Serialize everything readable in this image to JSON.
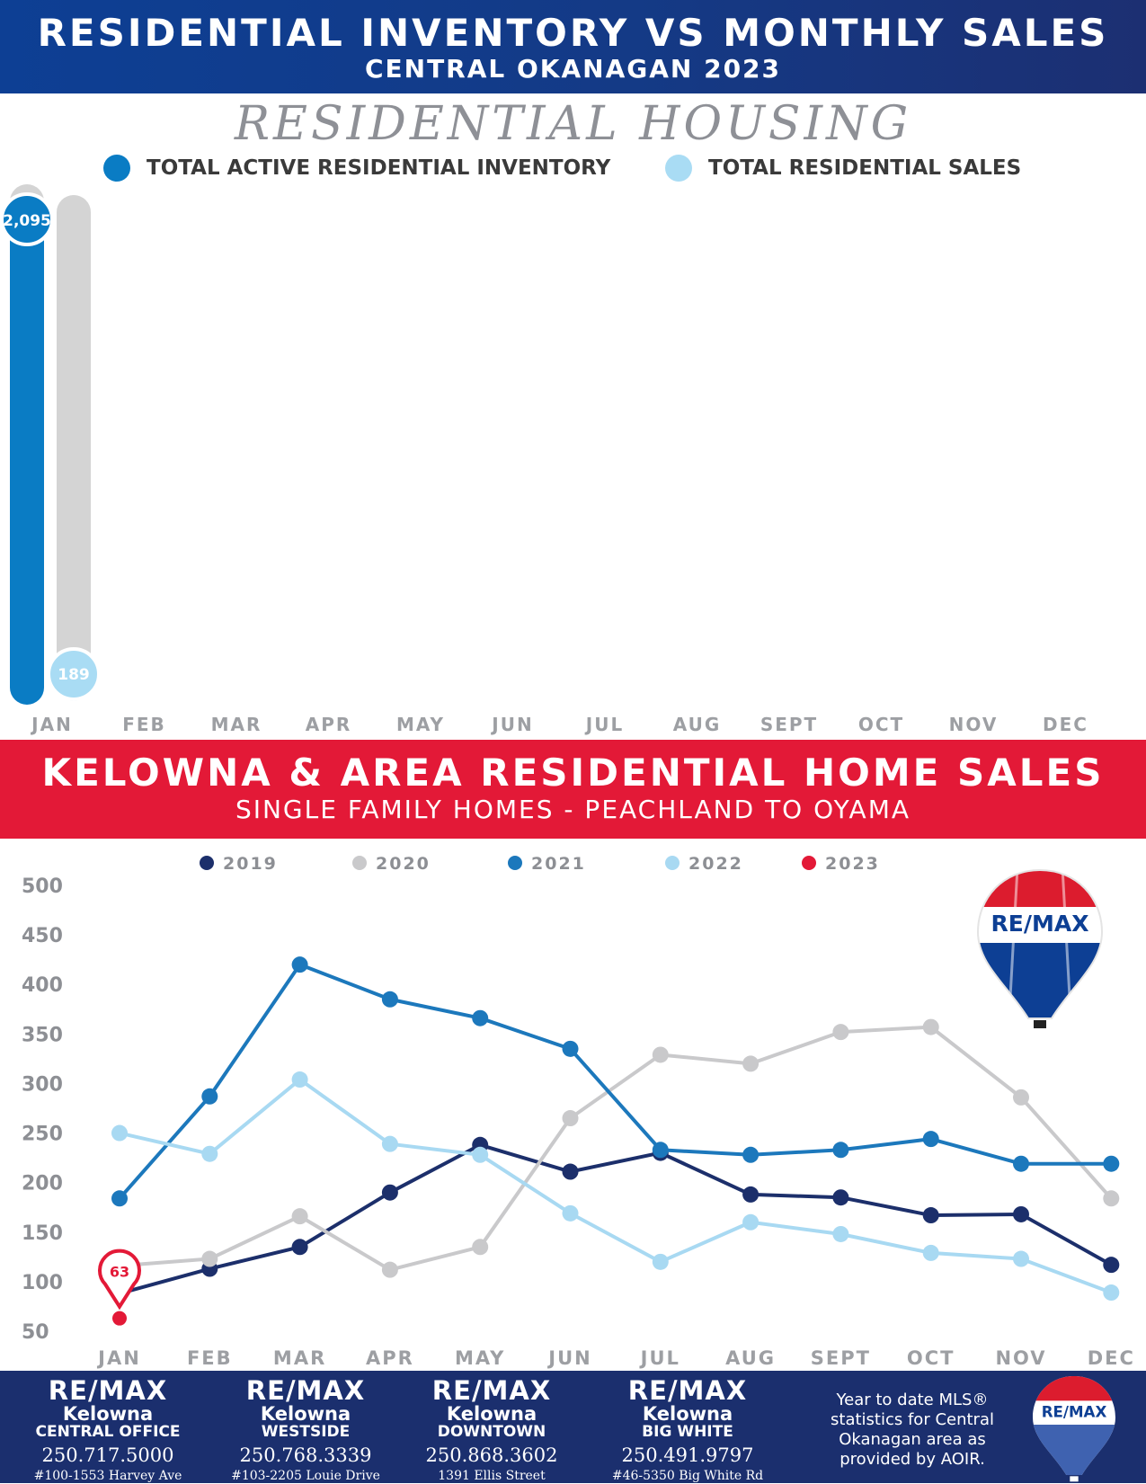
{
  "header": {
    "title": "RESIDENTIAL INVENTORY VS MONTHLY SALES",
    "subtitle": "CENTRAL OKANAGAN 2023"
  },
  "section1": {
    "script_title": "RESIDENTIAL HOUSING",
    "legend": [
      {
        "label": "TOTAL ACTIVE RESIDENTIAL INVENTORY",
        "color": "#0a7cc4"
      },
      {
        "label": "TOTAL RESIDENTIAL SALES",
        "color": "#a9dcf4"
      }
    ]
  },
  "section2": {
    "title": "KELOWNA & AREA RESIDENTIAL HOME SALES",
    "subtitle": "SINGLE FAMILY HOMES - PEACHLAND TO OYAMA"
  },
  "logo": {
    "text": "RE/MAX"
  },
  "chart_data": [
    {
      "type": "bar",
      "categories": [
        "JAN",
        "FEB",
        "MAR",
        "APR",
        "MAY",
        "JUN",
        "JUL",
        "AUG",
        "SEPT",
        "OCT",
        "NOV",
        "DEC"
      ],
      "series": [
        {
          "name": "TOTAL ACTIVE RESIDENTIAL INVENTORY",
          "values": [
            2095,
            null,
            null,
            null,
            null,
            null,
            null,
            null,
            null,
            null,
            null,
            null
          ],
          "labels": [
            "2,095"
          ],
          "color": "#0a7cc4"
        },
        {
          "name": "TOTAL RESIDENTIAL SALES",
          "values": [
            189,
            null,
            null,
            null,
            null,
            null,
            null,
            null,
            null,
            null,
            null,
            null
          ],
          "labels": [
            "189"
          ],
          "color": "#a9dcf4"
        }
      ],
      "track_color": "#d4d4d4"
    },
    {
      "type": "line",
      "categories": [
        "JAN",
        "FEB",
        "MAR",
        "APR",
        "MAY",
        "JUN",
        "JUL",
        "AUG",
        "SEPT",
        "OCT",
        "NOV",
        "DEC"
      ],
      "yticks": [
        500,
        450,
        400,
        350,
        300,
        250,
        200,
        150,
        100,
        50
      ],
      "ylim": [
        50,
        500
      ],
      "series": [
        {
          "name": "2019",
          "color": "#1c2f6b",
          "values": [
            88,
            113,
            135,
            190,
            238,
            211,
            230,
            188,
            185,
            167,
            168,
            117
          ]
        },
        {
          "name": "2020",
          "color": "#c9c9cb",
          "values": [
            116,
            123,
            166,
            112,
            135,
            265,
            329,
            320,
            352,
            357,
            286,
            184
          ]
        },
        {
          "name": "2021",
          "color": "#1c78bc",
          "values": [
            184,
            287,
            420,
            385,
            366,
            335,
            233,
            228,
            233,
            244,
            219,
            219
          ]
        },
        {
          "name": "2022",
          "color": "#a8d9f2",
          "values": [
            250,
            229,
            304,
            239,
            228,
            169,
            120,
            160,
            148,
            129,
            123,
            89
          ]
        },
        {
          "name": "2023",
          "color": "#e31937",
          "values": [
            63,
            null,
            null,
            null,
            null,
            null,
            null,
            null,
            null,
            null,
            null,
            null
          ]
        }
      ],
      "callout": {
        "label": "63"
      }
    }
  ],
  "footer": {
    "offices": [
      {
        "brand": "RE/MAX",
        "city": "Kelowna",
        "branch": "CENTRAL OFFICE",
        "phone": "250.717.5000",
        "address": "#100-1553 Harvey Ave"
      },
      {
        "brand": "RE/MAX",
        "city": "Kelowna",
        "branch": "WESTSIDE",
        "phone": "250.768.3339",
        "address": "#103-2205 Louie Drive"
      },
      {
        "brand": "RE/MAX",
        "city": "Kelowna",
        "branch": "DOWNTOWN",
        "phone": "250.868.3602",
        "address": "1391 Ellis Street"
      },
      {
        "brand": "RE/MAX",
        "city": "Kelowna",
        "branch": "BIG WHITE",
        "phone": "250.491.9797",
        "address": "#46-5350 Big White Rd"
      }
    ],
    "note": "Year to date MLS® statistics for Central Okanagan area as provided by AOIR."
  }
}
